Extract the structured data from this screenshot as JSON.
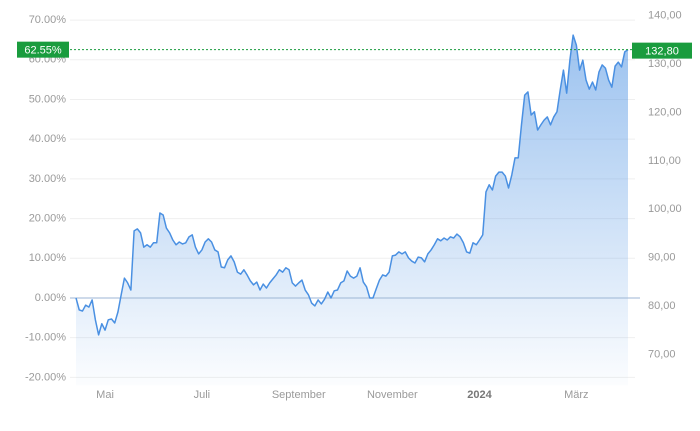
{
  "chart_data": {
    "type": "area",
    "categories": [
      null,
      null,
      null,
      null,
      null,
      null,
      null,
      null,
      null,
      "Mai",
      null,
      null,
      null,
      null,
      null,
      null,
      null,
      null,
      null,
      null,
      null,
      null,
      null,
      null,
      null,
      null,
      null,
      null,
      null,
      null,
      null,
      null,
      null,
      null,
      null,
      null,
      null,
      null,
      null,
      "Juli",
      null,
      null,
      null,
      null,
      null,
      null,
      null,
      null,
      null,
      null,
      null,
      null,
      null,
      null,
      null,
      null,
      null,
      null,
      null,
      null,
      null,
      null,
      null,
      null,
      null,
      null,
      null,
      null,
      null,
      "September",
      null,
      null,
      null,
      null,
      null,
      null,
      null,
      null,
      null,
      null,
      null,
      null,
      null,
      null,
      null,
      null,
      null,
      null,
      null,
      null,
      null,
      null,
      null,
      null,
      null,
      null,
      null,
      null,
      "November",
      null,
      null,
      null,
      null,
      null,
      null,
      null,
      null,
      null,
      null,
      null,
      null,
      null,
      null,
      null,
      null,
      null,
      null,
      null,
      null,
      null,
      null,
      null,
      null,
      null,
      null,
      "2024",
      null,
      null,
      null,
      null,
      null,
      null,
      null,
      null,
      null,
      null,
      null,
      null,
      null,
      null,
      null,
      null,
      null,
      null,
      null,
      null,
      null,
      null,
      null,
      null,
      null,
      null,
      null,
      null,
      null,
      "März",
      null,
      null,
      null,
      null,
      null,
      null,
      null,
      null,
      null,
      null,
      null,
      null,
      null,
      null,
      null,
      null
    ],
    "values": [
      0,
      -3.0,
      -3.3,
      -1.8,
      -2.3,
      -0.5,
      -5.5,
      -9.3,
      -6.5,
      -8.1,
      -5.5,
      -5.3,
      -6.3,
      -3.5,
      0.8,
      5.0,
      3.8,
      2.0,
      16.9,
      17.4,
      16.4,
      12.8,
      13.4,
      12.8,
      13.9,
      13.9,
      21.4,
      20.9,
      17.6,
      16.4,
      14.6,
      13.4,
      14.1,
      13.6,
      13.9,
      15.4,
      15.9,
      12.8,
      11.1,
      12.1,
      14.1,
      14.9,
      14.1,
      12.1,
      11.6,
      7.8,
      7.6,
      9.6,
      10.6,
      9.1,
      6.5,
      6.0,
      7.1,
      5.8,
      4.3,
      3.3,
      4.0,
      2.0,
      3.5,
      2.5,
      3.8,
      4.8,
      5.8,
      7.1,
      6.5,
      7.6,
      7.1,
      3.8,
      3.0,
      3.8,
      4.5,
      2.0,
      0.8,
      -1.3,
      -2.0,
      -0.5,
      -1.5,
      -0.3,
      1.5,
      0,
      1.8,
      2.0,
      3.8,
      4.3,
      6.8,
      5.5,
      5.0,
      5.5,
      7.6,
      4.0,
      2.8,
      0,
      0,
      2.3,
      4.5,
      5.8,
      5.5,
      6.5,
      10.6,
      10.8,
      11.6,
      11.1,
      11.6,
      10.1,
      9.3,
      8.8,
      10.3,
      10.1,
      9.1,
      11.1,
      12.1,
      13.4,
      14.9,
      14.4,
      15.1,
      14.6,
      15.4,
      15.1,
      16.1,
      15.4,
      13.9,
      11.6,
      11.3,
      13.9,
      13.4,
      14.6,
      15.9,
      26.7,
      28.5,
      27.2,
      30.7,
      31.7,
      31.7,
      30.7,
      27.7,
      31.0,
      35.3,
      35.3,
      43.6,
      51.1,
      51.9,
      46.1,
      46.9,
      42.3,
      43.6,
      44.8,
      45.6,
      43.6,
      45.6,
      46.9,
      52.4,
      57.4,
      51.6,
      59.9,
      66.2,
      63.7,
      57.4,
      59.9,
      54.9,
      52.6,
      54.4,
      52.4,
      56.9,
      58.7,
      57.9,
      54.9,
      53.1,
      58.4,
      59.4,
      58.2,
      62.0,
      62.55
    ],
    "color": "#4a90e2",
    "ylim": [
      -22,
      74
    ],
    "yticks": [
      {
        "value": 70,
        "label": "70.00%"
      },
      {
        "value": 60,
        "label": "60.00%"
      },
      {
        "value": 50,
        "label": "50.00%"
      },
      {
        "value": 40,
        "label": "40.00%"
      },
      {
        "value": 30,
        "label": "30.00%"
      },
      {
        "value": 20,
        "label": "20.00%"
      },
      {
        "value": 10,
        "label": "10.00%"
      },
      {
        "value": 0,
        "label": "0.00%"
      },
      {
        "value": -10,
        "label": "-10.00%"
      },
      {
        "value": -20,
        "label": "-20.00%"
      }
    ],
    "y2lim": [
      63.6,
      142.4
    ],
    "y2ticks": [
      {
        "value": 140,
        "label": "140,00"
      },
      {
        "value": 130,
        "label": "130,00"
      },
      {
        "value": 120,
        "label": "120,00"
      },
      {
        "value": 110,
        "label": "110,00"
      },
      {
        "value": 100,
        "label": "100,00"
      },
      {
        "value": 90,
        "label": "90,00"
      },
      {
        "value": 80,
        "label": "80,00"
      },
      {
        "value": 70,
        "label": "70,00"
      }
    ],
    "last_value": {
      "value": 62.55,
      "label": "62.55%"
    },
    "last_price": {
      "value": 132.8,
      "label": "132,80"
    },
    "badge_color": "#1a9c3e",
    "grid": true
  }
}
